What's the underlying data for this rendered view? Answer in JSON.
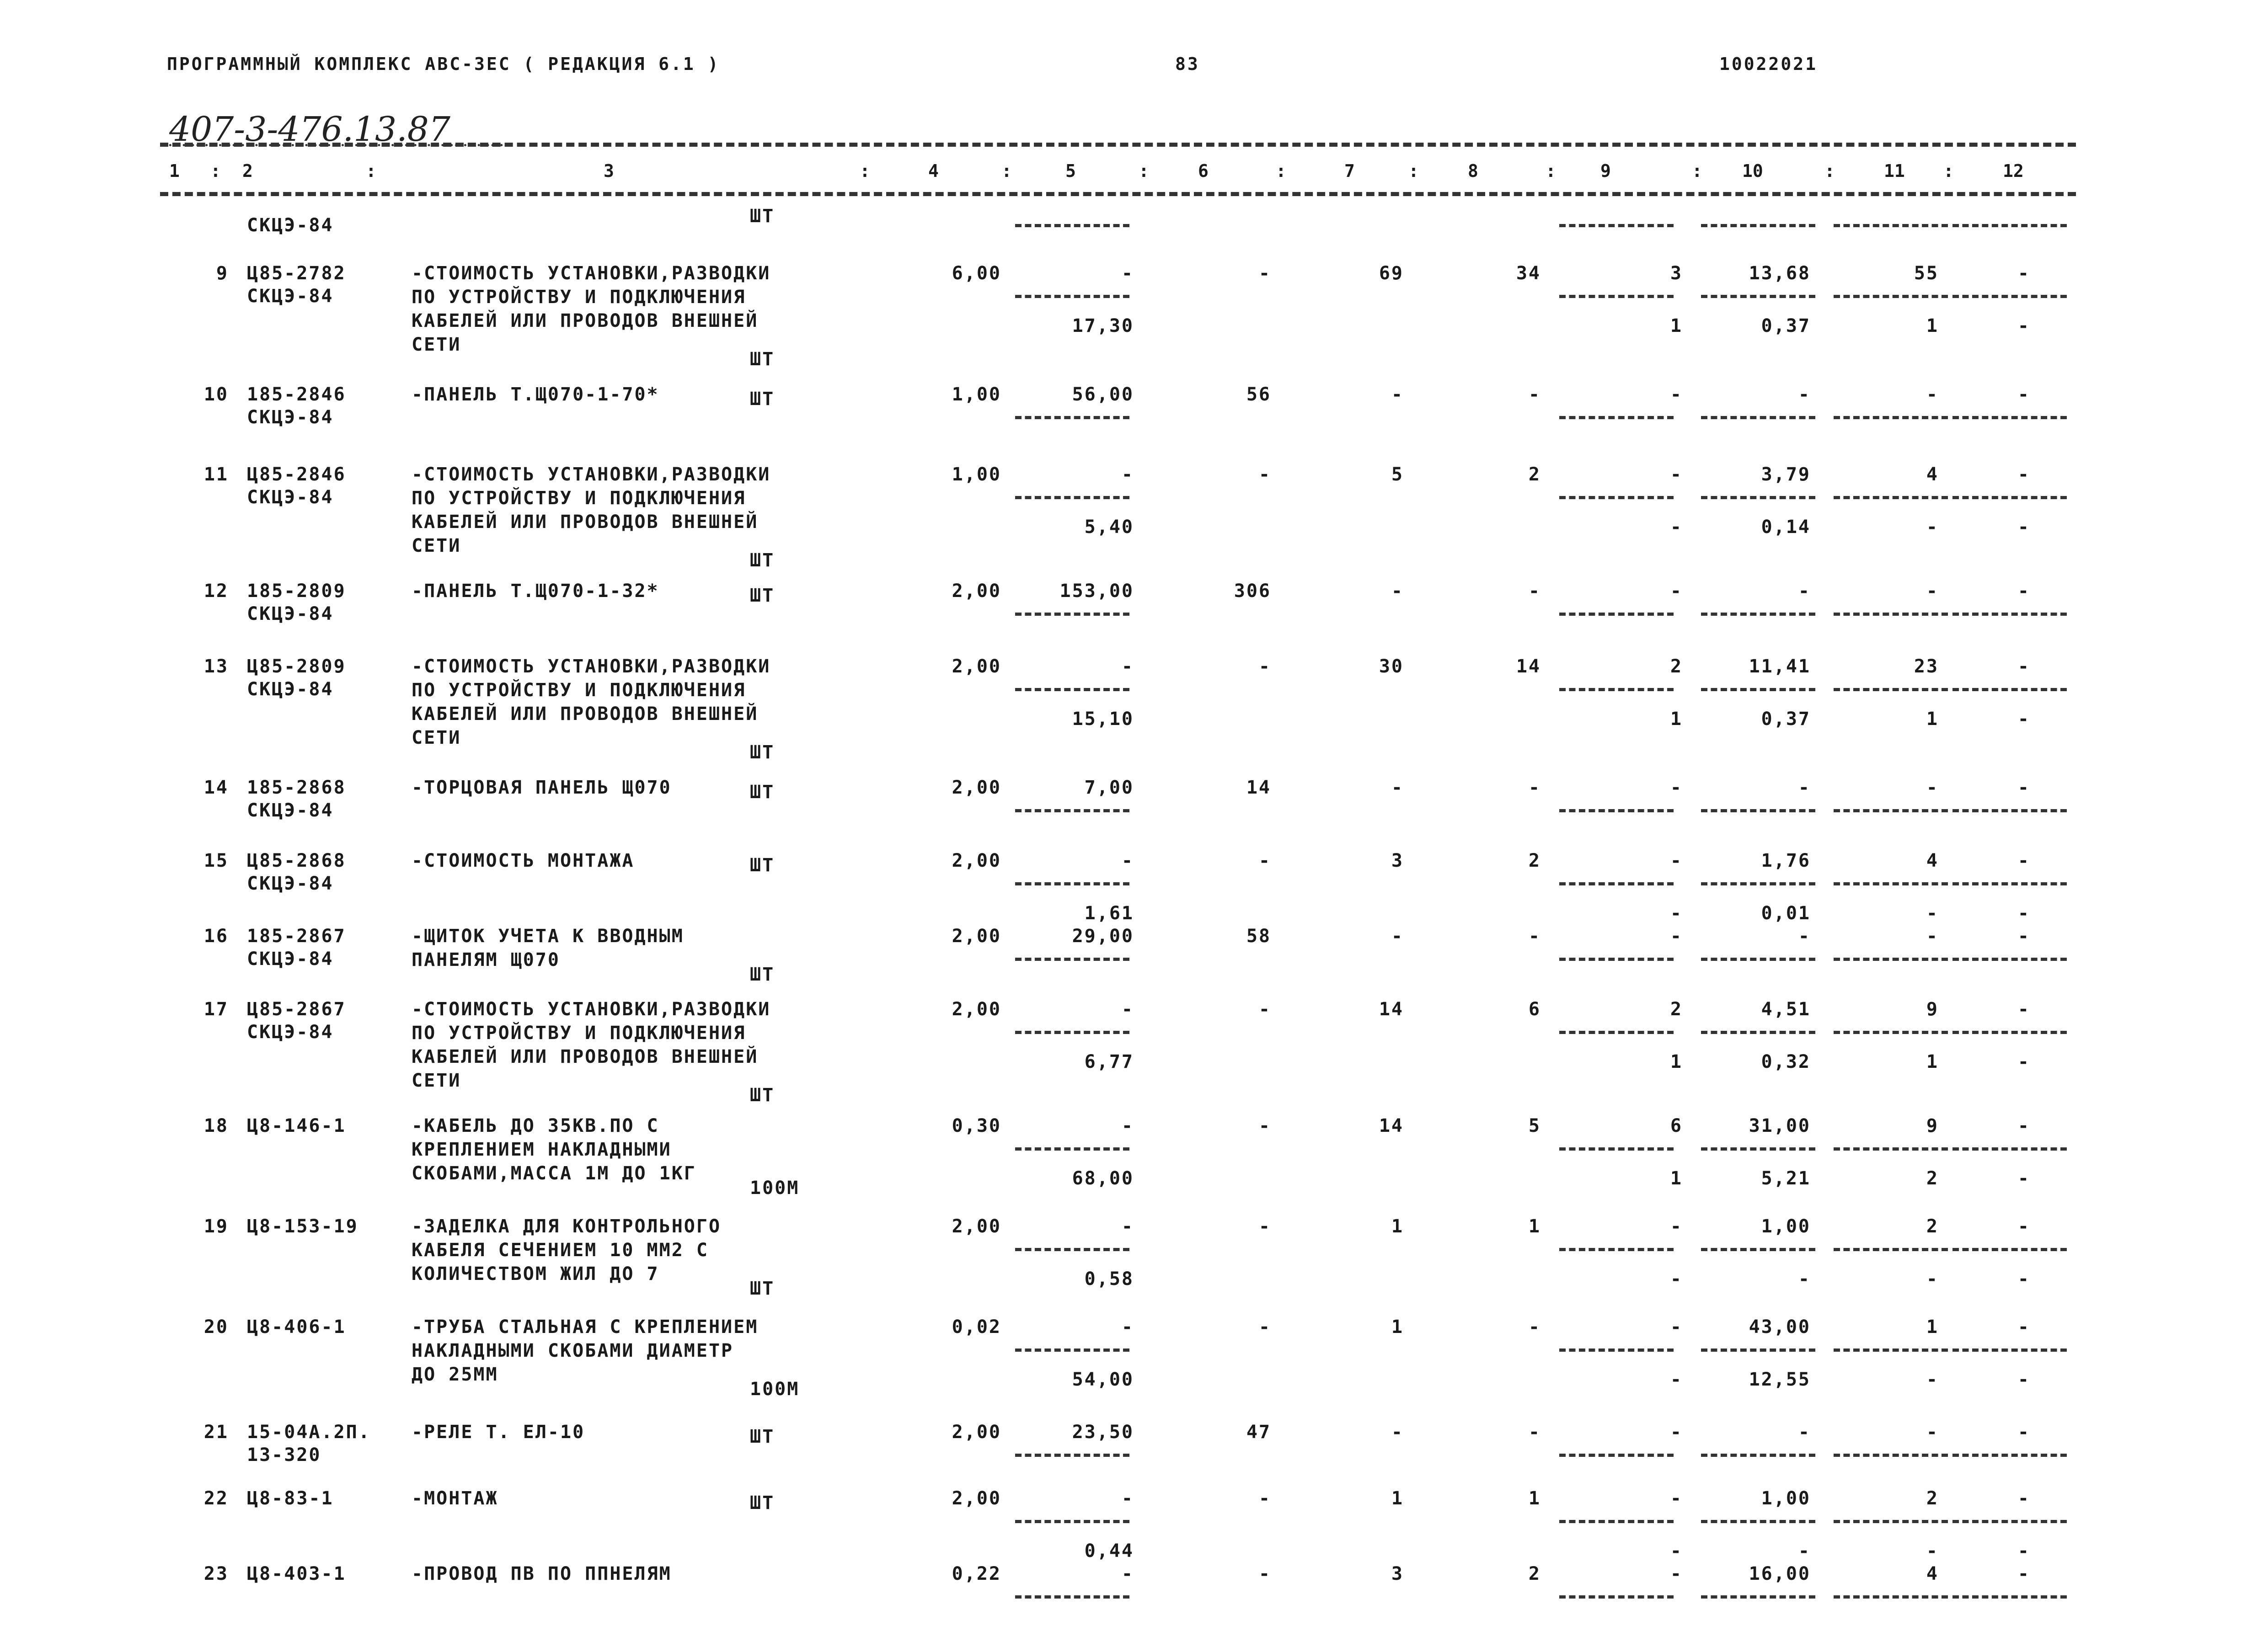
{
  "header": {
    "left": "ПРОГРАММНЫЙ КОМПЛЕКС АВС-3ЕС  ( РЕДАКЦИЯ  6.1 )",
    "page": "83",
    "code": "10022021"
  },
  "handwritten": "407-3-476.13.87",
  "columns": [
    "1",
    "2",
    "3",
    "4",
    "5",
    "6",
    "7",
    "8",
    "9",
    "10",
    "11",
    "12"
  ],
  "rows": [
    {
      "num": "",
      "code": "СКЦЭ-84",
      "desc": [],
      "unit": "ШТ",
      "qty": "",
      "c5": "",
      "c5b": "",
      "c6": "",
      "c7": "",
      "c8": "",
      "c9": "",
      "c9b": "",
      "c10": "",
      "c10b": "",
      "c11": "",
      "c11b": "",
      "c12": "",
      "c12b": ""
    },
    {
      "num": "9",
      "code": "Ц85-2782\nСКЦЭ-84",
      "desc": [
        "-СТОИМОСТЬ УСТАНОВКИ,РАЗВОДКИ",
        "ПО УСТРОЙСТВУ И ПОДКЛЮЧЕНИЯ",
        "КАБЕЛЕЙ ИЛИ ПРОВОДОВ ВНЕШНЕЙ",
        "СЕТИ"
      ],
      "unit": "ШТ",
      "qty": "6,00",
      "c5": "-",
      "c5b": "17,30",
      "c6": "-",
      "c7": "69",
      "c8": "34",
      "c9": "3",
      "c9b": "1",
      "c10": "13,68",
      "c10b": "0,37",
      "c11": "55",
      "c11b": "1",
      "c12": "-",
      "c12b": "-"
    },
    {
      "num": "10",
      "code": "185-2846\nСКЦЭ-84",
      "desc": [
        "-ПАНЕЛЬ Т.Щ070-1-70*"
      ],
      "unit": "ШТ",
      "qty": "1,00",
      "c5": "56,00",
      "c5b": "",
      "c6": "56",
      "c7": "-",
      "c8": "-",
      "c9": "-",
      "c9b": "",
      "c10": "-",
      "c10b": "",
      "c11": "-",
      "c11b": "",
      "c12": "-",
      "c12b": ""
    },
    {
      "num": "11",
      "code": "Ц85-2846\nСКЦЭ-84",
      "desc": [
        "-СТОИМОСТЬ УСТАНОВКИ,РАЗВОДКИ",
        "ПО УСТРОЙСТВУ И ПОДКЛЮЧЕНИЯ",
        "КАБЕЛЕЙ ИЛИ ПРОВОДОВ ВНЕШНЕЙ",
        "СЕТИ"
      ],
      "unit": "ШТ",
      "qty": "1,00",
      "c5": "-",
      "c5b": "5,40",
      "c6": "-",
      "c7": "5",
      "c8": "2",
      "c9": "-",
      "c9b": "-",
      "c10": "3,79",
      "c10b": "0,14",
      "c11": "4",
      "c11b": "-",
      "c12": "-",
      "c12b": "-"
    },
    {
      "num": "12",
      "code": "185-2809\nСКЦЭ-84",
      "desc": [
        "-ПАНЕЛЬ Т.Щ070-1-32*"
      ],
      "unit": "ШТ",
      "qty": "2,00",
      "c5": "153,00",
      "c5b": "",
      "c6": "306",
      "c7": "-",
      "c8": "-",
      "c9": "-",
      "c9b": "",
      "c10": "-",
      "c10b": "",
      "c11": "-",
      "c11b": "",
      "c12": "-",
      "c12b": ""
    },
    {
      "num": "13",
      "code": "Ц85-2809\nСКЦЭ-84",
      "desc": [
        "-СТОИМОСТЬ УСТАНОВКИ,РАЗВОДКИ",
        "ПО УСТРОЙСТВУ И ПОДКЛЮЧЕНИЯ",
        "КАБЕЛЕЙ ИЛИ ПРОВОДОВ ВНЕШНЕЙ",
        "СЕТИ"
      ],
      "unit": "ШТ",
      "qty": "2,00",
      "c5": "-",
      "c5b": "15,10",
      "c6": "-",
      "c7": "30",
      "c8": "14",
      "c9": "2",
      "c9b": "1",
      "c10": "11,41",
      "c10b": "0,37",
      "c11": "23",
      "c11b": "1",
      "c12": "-",
      "c12b": "-"
    },
    {
      "num": "14",
      "code": "185-2868\nСКЦЭ-84",
      "desc": [
        "-ТОРЦОВАЯ ПАНЕЛЬ Щ070"
      ],
      "unit": "ШТ",
      "qty": "2,00",
      "c5": "7,00",
      "c5b": "",
      "c6": "14",
      "c7": "-",
      "c8": "-",
      "c9": "-",
      "c9b": "",
      "c10": "-",
      "c10b": "",
      "c11": "-",
      "c11b": "",
      "c12": "-",
      "c12b": ""
    },
    {
      "num": "15",
      "code": "Ц85-2868\nСКЦЭ-84",
      "desc": [
        "-СТОИМОСТЬ МОНТАЖА"
      ],
      "unit": "ШТ",
      "qty": "2,00",
      "c5": "-",
      "c5b": "1,61",
      "c6": "-",
      "c7": "3",
      "c8": "2",
      "c9": "-",
      "c9b": "-",
      "c10": "1,76",
      "c10b": "0,01",
      "c11": "4",
      "c11b": "-",
      "c12": "-",
      "c12b": "-"
    },
    {
      "num": "16",
      "code": "185-2867\nСКЦЭ-84",
      "desc": [
        "-ЩИТОК УЧЕТА К ВВОДНЫМ",
        "ПАНЕЛЯМ Щ070"
      ],
      "unit": "ШТ",
      "qty": "2,00",
      "c5": "29,00",
      "c5b": "",
      "c6": "58",
      "c7": "-",
      "c8": "-",
      "c9": "-",
      "c9b": "",
      "c10": "-",
      "c10b": "",
      "c11": "-",
      "c11b": "",
      "c12": "-",
      "c12b": ""
    },
    {
      "num": "17",
      "code": "Ц85-2867\nСКЦЭ-84",
      "desc": [
        "-СТОИМОСТЬ УСТАНОВКИ,РАЗВОДКИ",
        "ПО УСТРОЙСТВУ И ПОДКЛЮЧЕНИЯ",
        "КАБЕЛЕЙ ИЛИ ПРОВОДОВ ВНЕШНЕЙ",
        "СЕТИ"
      ],
      "unit": "ШТ",
      "qty": "2,00",
      "c5": "-",
      "c5b": "6,77",
      "c6": "-",
      "c7": "14",
      "c8": "6",
      "c9": "2",
      "c9b": "1",
      "c10": "4,51",
      "c10b": "0,32",
      "c11": "9",
      "c11b": "1",
      "c12": "-",
      "c12b": "-"
    },
    {
      "num": "18",
      "code": "Ц8-146-1",
      "desc": [
        "-КАБЕЛЬ ДО 35КВ.ПО С",
        "КРЕПЛЕНИЕМ НАКЛАДНЫМИ",
        "СКОБАМИ,МАССА 1М ДО 1КГ"
      ],
      "unit": "100М",
      "qty": "0,30",
      "c5": "-",
      "c5b": "68,00",
      "c6": "-",
      "c7": "14",
      "c8": "5",
      "c9": "6",
      "c9b": "1",
      "c10": "31,00",
      "c10b": "5,21",
      "c11": "9",
      "c11b": "2",
      "c12": "-",
      "c12b": "-"
    },
    {
      "num": "19",
      "code": "Ц8-153-19",
      "desc": [
        "-ЗАДЕЛКА ДЛЯ КОНТРОЛЬНОГО",
        "КАБЕЛЯ СЕЧЕНИЕМ 10 ММ2 С",
        "КОЛИЧЕСТВОМ ЖИЛ ДО 7"
      ],
      "unit": "ШТ",
      "qty": "2,00",
      "c5": "-",
      "c5b": "0,58",
      "c6": "-",
      "c7": "1",
      "c8": "1",
      "c9": "-",
      "c9b": "-",
      "c10": "1,00",
      "c10b": "-",
      "c11": "2",
      "c11b": "-",
      "c12": "-",
      "c12b": "-"
    },
    {
      "num": "20",
      "code": "Ц8-406-1",
      "desc": [
        "-ТРУБА СТАЛЬНАЯ С КРЕПЛЕНИЕМ",
        "НАКЛАДНЫМИ СКОБАМИ ДИАМЕТР",
        "ДО 25ММ"
      ],
      "unit": "100М",
      "qty": "0,02",
      "c5": "-",
      "c5b": "54,00",
      "c6": "-",
      "c7": "1",
      "c8": "-",
      "c9": "-",
      "c9b": "-",
      "c10": "43,00",
      "c10b": "12,55",
      "c11": "1",
      "c11b": "-",
      "c12": "-",
      "c12b": "-"
    },
    {
      "num": "21",
      "code": "15-04А.2П.\n13-320",
      "desc": [
        "-РЕЛЕ Т. ЕЛ-10"
      ],
      "unit": "ШТ",
      "qty": "2,00",
      "c5": "23,50",
      "c5b": "",
      "c6": "47",
      "c7": "-",
      "c8": "-",
      "c9": "-",
      "c9b": "",
      "c10": "-",
      "c10b": "",
      "c11": "-",
      "c11b": "",
      "c12": "-",
      "c12b": ""
    },
    {
      "num": "22",
      "code": "Ц8-83-1",
      "desc": [
        "-МОНТАЖ"
      ],
      "unit": "ШТ",
      "qty": "2,00",
      "c5": "-",
      "c5b": "0,44",
      "c6": "-",
      "c7": "1",
      "c8": "1",
      "c9": "-",
      "c9b": "-",
      "c10": "1,00",
      "c10b": "-",
      "c11": "2",
      "c11b": "-",
      "c12": "-",
      "c12b": "-"
    },
    {
      "num": "23",
      "code": "Ц8-403-1",
      "desc": [
        "-ПРОВОД ПВ ПО ППНЕЛЯМ"
      ],
      "unit": "",
      "qty": "0,22",
      "c5": "-",
      "c5b": "",
      "c6": "-",
      "c7": "3",
      "c8": "2",
      "c9": "-",
      "c9b": "",
      "c10": "16,00",
      "c10b": "",
      "c11": "4",
      "c11b": "",
      "c12": "-",
      "c12b": ""
    }
  ]
}
